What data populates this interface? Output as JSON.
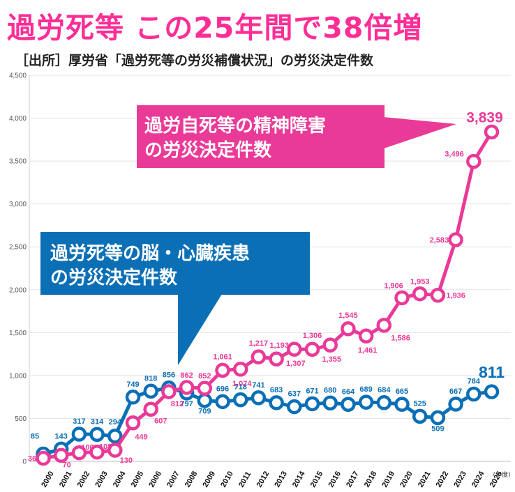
{
  "headline": "過労死等 この25年間で38倍増",
  "source": "［出所］厚労省「過労死等の労災補償状況」の労災決定件数",
  "chart_data": {
    "type": "line",
    "xlabel": "(年度)",
    "ylabel": "",
    "ylim": [
      0,
      4500
    ],
    "yticks": [
      0,
      500,
      1000,
      1500,
      2000,
      2500,
      3000,
      3500,
      4000,
      4500
    ],
    "ytick_labels": [
      "0",
      "500",
      "1,000",
      "1,500",
      "2,000",
      "2,500",
      "3,000",
      "3,500",
      "4,000",
      "4,500"
    ],
    "grid": true,
    "categories": [
      "2000",
      "2001",
      "2002",
      "2003",
      "2004",
      "2005",
      "2006",
      "2007",
      "2008",
      "2009",
      "2010",
      "2011",
      "2012",
      "2013",
      "2014",
      "2015",
      "2016",
      "2017",
      "2018",
      "2019",
      "2020",
      "2021",
      "2022",
      "2023",
      "2024",
      "2025"
    ],
    "series": [
      {
        "name": "過労死等の脳・心臓疾患の労災決定件数",
        "name_lines": [
          "過労死等の脳・心臓疾患",
          "の労災決定件数"
        ],
        "color": "#0b6fb6",
        "values": [
          85,
          143,
          317,
          314,
          294,
          749,
          818,
          856,
          797,
          709,
          696,
          718,
          741,
          683,
          637,
          671,
          680,
          664,
          689,
          684,
          665,
          525,
          509,
          667,
          784,
          811
        ],
        "labels": [
          "85",
          "143",
          "317",
          "314",
          "294",
          "749",
          "818",
          "856",
          "797",
          "709",
          "696",
          "718",
          "741",
          "683",
          "637",
          "671",
          "680",
          "664",
          "689",
          "684",
          "665",
          "525",
          "509",
          "667",
          "784",
          "811"
        ]
      },
      {
        "name": "過労自死等の精神障害の労災決定件数",
        "name_lines": [
          "過労自死等の精神障害",
          "の労災決定件数"
        ],
        "color": "#ea3a98",
        "values": [
          36,
          70,
          100,
          108,
          130,
          449,
          607,
          812,
          862,
          852,
          1061,
          1074,
          1217,
          1193,
          1307,
          1306,
          1355,
          1545,
          1461,
          1586,
          1906,
          1953,
          1936,
          2583,
          3496,
          3839
        ],
        "labels": [
          "36",
          "70",
          "100",
          "108",
          "130",
          "449",
          "607",
          "812",
          "862",
          "852",
          "1,061",
          "1,074",
          "1,217",
          "1,193",
          "1,307",
          "1,306",
          "1,355",
          "1,545",
          "1,461",
          "1,586",
          "1,906",
          "1,953",
          "1,936",
          "2,583",
          "3,496",
          "3,839"
        ]
      }
    ]
  }
}
